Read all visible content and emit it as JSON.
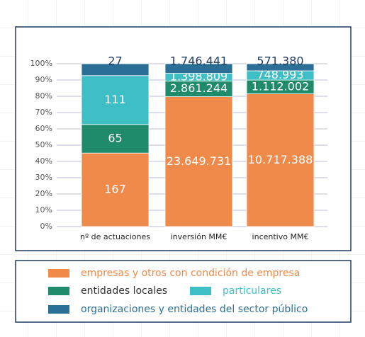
{
  "chart_data": {
    "type": "stacked_bar_percent",
    "categories": [
      "nº de actuaciones",
      "inversión MM€",
      "incentivo MM€"
    ],
    "series": [
      {
        "name": "empresas y otros con condición de empresa",
        "color": "#f08a4b",
        "values": [
          167,
          23649731,
          10717388
        ],
        "value_labels": [
          "167",
          "23.649.731",
          "10.717.388"
        ]
      },
      {
        "name": "entidades locales",
        "color": "#1f8b6b",
        "values": [
          65,
          2861244,
          1112002
        ],
        "value_labels": [
          "65",
          "2.861.244",
          "1.112.002"
        ]
      },
      {
        "name": "particulares",
        "color": "#3ebfc5",
        "values": [
          111,
          1398809,
          748993
        ],
        "value_labels": [
          "111",
          "1.398.809",
          "748.993"
        ]
      },
      {
        "name": "organizaciones y entidades del sector público",
        "color": "#2b6f97",
        "values": [
          27,
          1746441,
          571380
        ],
        "value_labels": [
          "27",
          "1.746.441",
          "571.380"
        ]
      }
    ],
    "ylim": [
      0,
      100
    ],
    "yticks": [
      {
        "value": 0,
        "label": "0%"
      },
      {
        "value": 10,
        "label": "10%"
      },
      {
        "value": 20,
        "label": "20%"
      },
      {
        "value": 30,
        "label": "30%"
      },
      {
        "value": 40,
        "label": "40%"
      },
      {
        "value": 50,
        "label": "50%"
      },
      {
        "value": 60,
        "label": "60%"
      },
      {
        "value": 70,
        "label": "70%"
      },
      {
        "value": 80,
        "label": "80%"
      },
      {
        "value": 90,
        "label": "90%"
      },
      {
        "value": 100,
        "label": "100%"
      }
    ],
    "grid": true
  }
}
